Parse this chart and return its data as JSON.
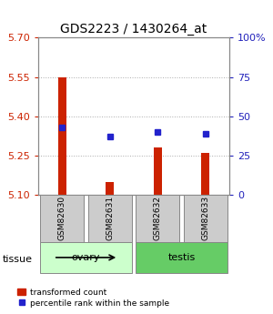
{
  "title": "GDS2223 / 1430264_at",
  "samples": [
    "GSM82630",
    "GSM82631",
    "GSM82632",
    "GSM82633"
  ],
  "tissue_groups": [
    {
      "label": "ovary",
      "samples": [
        "GSM82630",
        "GSM82631"
      ],
      "color": "#ccffcc"
    },
    {
      "label": "testis",
      "samples": [
        "GSM82632",
        "GSM82633"
      ],
      "color": "#66cc66"
    }
  ],
  "transformed_counts": [
    5.55,
    5.15,
    5.28,
    5.26
  ],
  "percentile_ranks": [
    43,
    37,
    40,
    39
  ],
  "bar_bottom": 5.1,
  "left_ylim": [
    5.1,
    5.7
  ],
  "left_yticks": [
    5.1,
    5.25,
    5.4,
    5.55,
    5.7
  ],
  "right_ylim": [
    0,
    100
  ],
  "right_yticks": [
    0,
    25,
    50,
    75,
    100
  ],
  "right_yticklabels": [
    "0",
    "25",
    "50",
    "75",
    "100%"
  ],
  "bar_color": "#cc2200",
  "dot_color": "#2222cc",
  "left_tick_color": "#cc2200",
  "right_tick_color": "#2222bb",
  "grid_color": "#aaaaaa",
  "legend_bar_label": "transformed count",
  "legend_dot_label": "percentile rank within the sample",
  "tissue_label": "tissue",
  "sample_box_color": "#cccccc",
  "sample_box_edge": "#888888"
}
